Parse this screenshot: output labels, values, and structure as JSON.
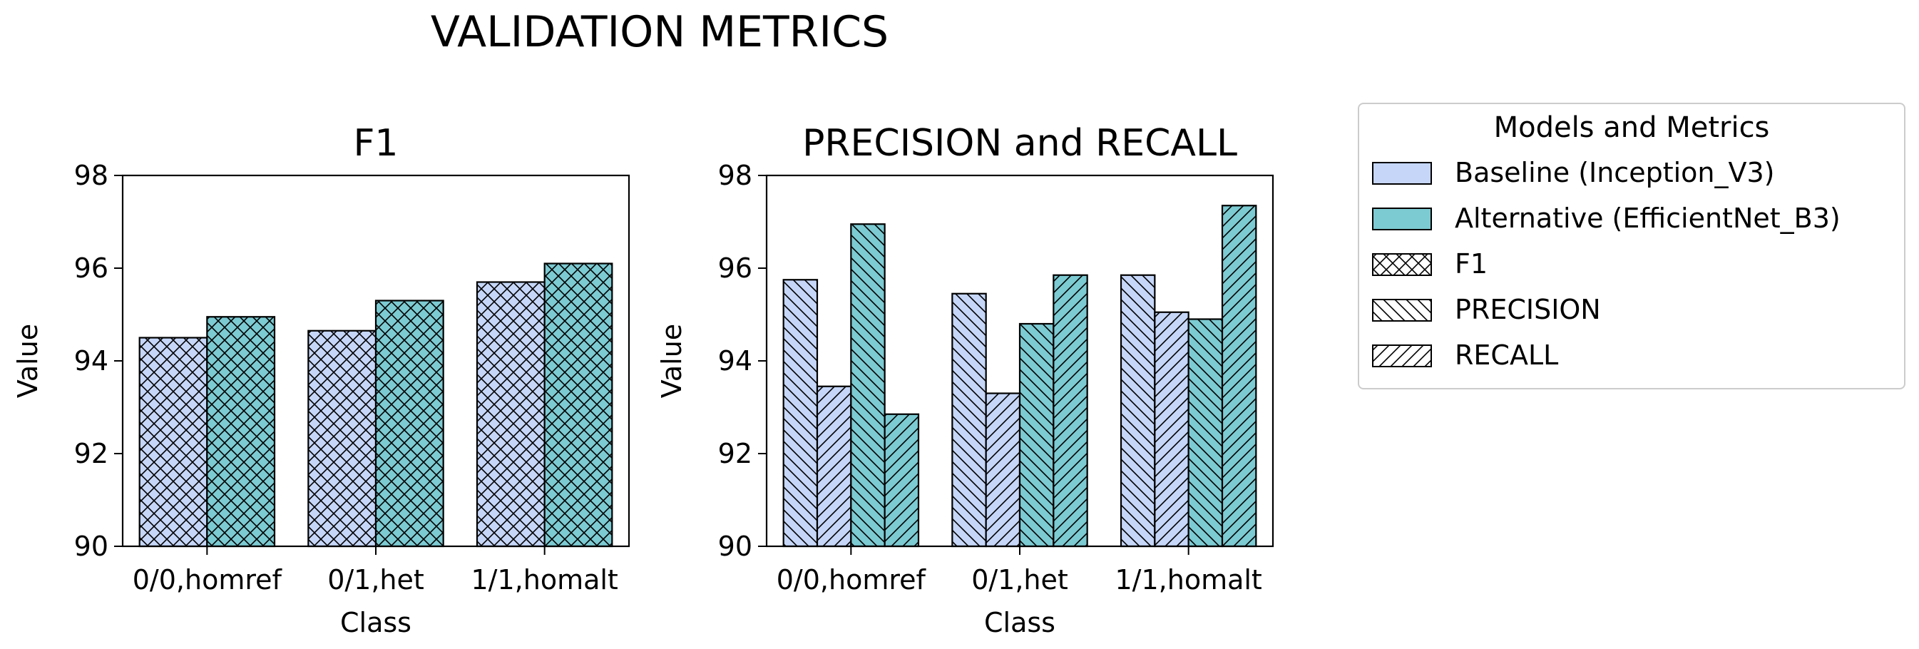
{
  "figure_title": "VALIDATION METRICS",
  "colors": {
    "baseline": "#c5d6f8",
    "alternative": "#7ccad2",
    "edge": "#000000",
    "hatch": "#000000"
  },
  "legend": {
    "title": "Models and Metrics",
    "entries": [
      {
        "label": "Baseline (Inception_V3)",
        "kind": "color",
        "key": "baseline"
      },
      {
        "label": "Alternative (EfficientNet_B3)",
        "kind": "color",
        "key": "alternative"
      },
      {
        "label": "F1",
        "kind": "hatch",
        "key": "xhatch"
      },
      {
        "label": "PRECISION",
        "kind": "hatch",
        "key": "bhatch"
      },
      {
        "label": "RECALL",
        "kind": "hatch",
        "key": "fhatch"
      }
    ]
  },
  "chart_data": [
    {
      "type": "bar",
      "title": "F1",
      "xlabel": "Class",
      "ylabel": "Value",
      "ylim": [
        90,
        98
      ],
      "yticks": [
        90,
        92,
        94,
        96,
        98
      ],
      "categories": [
        "0/0,homref",
        "0/1,het",
        "1/1,homalt"
      ],
      "series": [
        {
          "name": "Baseline (Inception_V3) F1",
          "model": "baseline",
          "metric": "xhatch",
          "values": [
            94.5,
            94.65,
            95.7
          ]
        },
        {
          "name": "Alternative (EfficientNet_B3) F1",
          "model": "alternative",
          "metric": "xhatch",
          "values": [
            94.95,
            95.3,
            96.1
          ]
        }
      ]
    },
    {
      "type": "bar",
      "title": "PRECISION and RECALL",
      "xlabel": "Class",
      "ylabel": "Value",
      "ylim": [
        90,
        98
      ],
      "yticks": [
        90,
        92,
        94,
        96,
        98
      ],
      "categories": [
        "0/0,homref",
        "0/1,het",
        "1/1,homalt"
      ],
      "series": [
        {
          "name": "Baseline (Inception_V3) PRECISION",
          "model": "baseline",
          "metric": "bhatch",
          "values": [
            95.75,
            95.45,
            95.85
          ]
        },
        {
          "name": "Baseline (Inception_V3) RECALL",
          "model": "baseline",
          "metric": "fhatch",
          "values": [
            93.45,
            93.3,
            95.05
          ]
        },
        {
          "name": "Alternative (EfficientNet_B3) PRECISION",
          "model": "alternative",
          "metric": "bhatch",
          "values": [
            96.95,
            94.8,
            94.9
          ]
        },
        {
          "name": "Alternative (EfficientNet_B3) RECALL",
          "model": "alternative",
          "metric": "fhatch",
          "values": [
            92.85,
            95.85,
            97.35
          ]
        }
      ]
    }
  ]
}
